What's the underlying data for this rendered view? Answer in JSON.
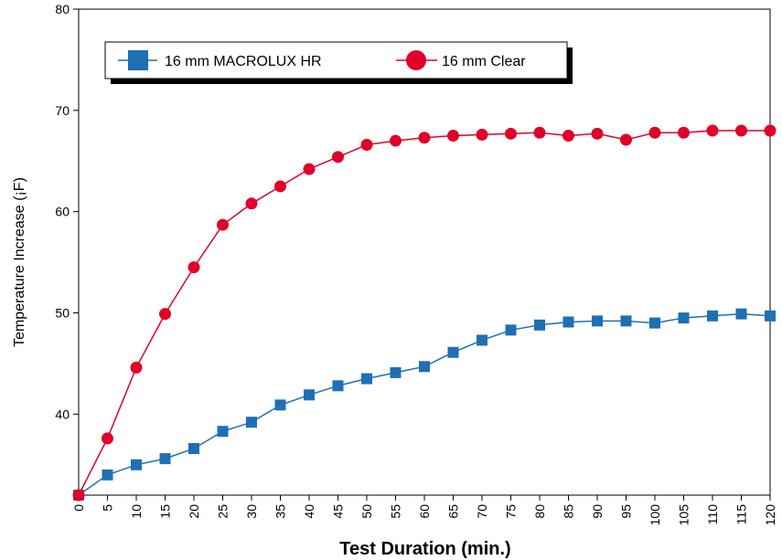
{
  "chart_data": {
    "type": "line",
    "title": "",
    "xlabel": "Test Duration (min.)",
    "ylabel": "Temperature Increase (¡F)",
    "xlim": [
      0,
      120
    ],
    "ylim": [
      32,
      80
    ],
    "x_ticks": [
      "0",
      "5",
      "10",
      "15",
      "20",
      "25",
      "30",
      "35",
      "40",
      "45",
      "50",
      "55",
      "60",
      "65",
      "70",
      "75",
      "80",
      "85",
      "90",
      "95",
      "100",
      "105",
      "110",
      "115",
      "120"
    ],
    "y_ticks": [
      "40",
      "50",
      "60",
      "70",
      "80"
    ],
    "grid": false,
    "legend_position": "top-left",
    "x": [
      0,
      5,
      10,
      15,
      20,
      25,
      30,
      35,
      40,
      45,
      50,
      55,
      60,
      65,
      70,
      75,
      80,
      85,
      90,
      95,
      100,
      105,
      110,
      115,
      120
    ],
    "series": [
      {
        "name": "16 mm MACROLUX HR",
        "marker": "square",
        "color": "#1f6fb5",
        "values": [
          32,
          34,
          35,
          35.6,
          36.6,
          38.3,
          39.2,
          40.9,
          41.9,
          42.8,
          43.5,
          44.1,
          44.7,
          46.1,
          47.3,
          48.3,
          48.8,
          49.1,
          49.2,
          49.2,
          49,
          49.5,
          49.7,
          49.9,
          49.7
        ]
      },
      {
        "name": "16 mm Clear",
        "marker": "circle",
        "color": "#e0002a",
        "values": [
          32,
          37.6,
          44.6,
          49.9,
          54.5,
          58.7,
          60.8,
          62.5,
          64.2,
          65.4,
          66.6,
          67,
          67.3,
          67.5,
          67.6,
          67.7,
          67.8,
          67.5,
          67.7,
          67.1,
          67.8,
          67.8,
          68,
          68,
          68
        ]
      }
    ]
  }
}
